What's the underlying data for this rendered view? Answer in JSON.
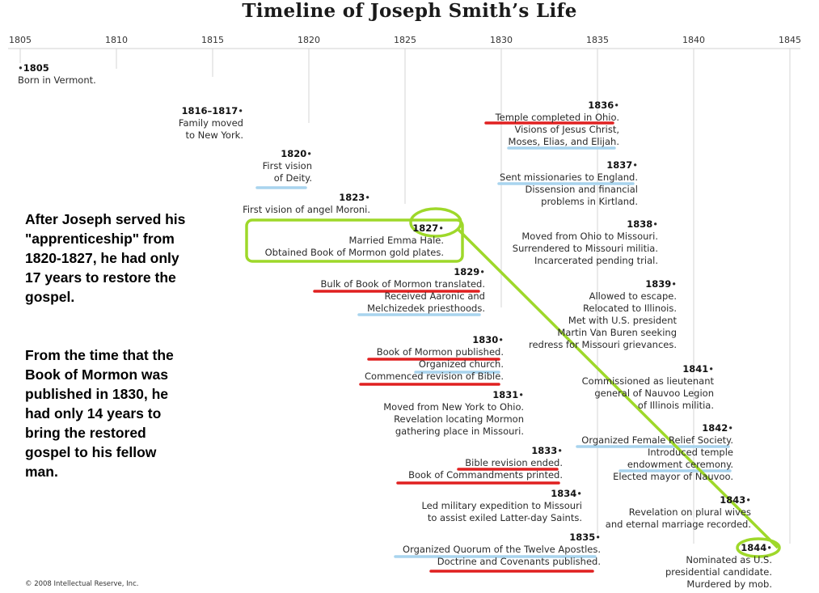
{
  "title": "Timeline of Joseph Smith’s Life",
  "axis_years": [
    "1805",
    "1810",
    "1815",
    "1820",
    "1825",
    "1830",
    "1835",
    "1840",
    "1845"
  ],
  "events": {
    "e1805": {
      "year": "1805",
      "lines": [
        "Born in Vermont."
      ]
    },
    "e1816": {
      "year": "1816–1817",
      "lines": [
        "Family moved",
        "to New York."
      ]
    },
    "e1820": {
      "year": "1820",
      "lines": [
        "First vision",
        "of Deity."
      ]
    },
    "e1823": {
      "year": "1823",
      "lines": [
        "First vision of angel Moroni."
      ]
    },
    "e1827": {
      "year": "1827",
      "lines": [
        "Married Emma Hale.",
        "Obtained Book of Mormon gold plates."
      ]
    },
    "e1829": {
      "year": "1829",
      "lines": [
        "Bulk of Book of Mormon translated.",
        "Received Aaronic and",
        "Melchizedek priesthoods."
      ]
    },
    "e1830": {
      "year": "1830",
      "lines": [
        "Book of Mormon published.",
        "Organized church.",
        "Commenced revision of Bible."
      ]
    },
    "e1831": {
      "year": "1831",
      "lines": [
        "Moved from New York to Ohio.",
        "Revelation locating Mormon",
        "gathering place in Missouri."
      ]
    },
    "e1833": {
      "year": "1833",
      "lines": [
        "Bible revision ended.",
        "Book of Commandments printed."
      ]
    },
    "e1834": {
      "year": "1834",
      "lines": [
        "Led military expedition to Missouri",
        "to assist exiled Latter-day Saints."
      ]
    },
    "e1835": {
      "year": "1835",
      "lines": [
        "Organized Quorum of the Twelve Apostles.",
        "Doctrine and Covenants published."
      ]
    },
    "e1836": {
      "year": "1836",
      "lines": [
        "Temple completed in Ohio.",
        "Visions of Jesus Christ,",
        "Moses, Elias, and Elijah."
      ]
    },
    "e1837": {
      "year": "1837",
      "lines": [
        "Sent missionaries to England.",
        "Dissension and financial",
        "problems in Kirtland."
      ]
    },
    "e1838": {
      "year": "1838",
      "lines": [
        "Moved from Ohio to Missouri.",
        "Surrendered to Missouri militia.",
        "Incarcerated pending trial."
      ]
    },
    "e1839": {
      "year": "1839",
      "lines": [
        "Allowed to escape.",
        "Relocated to Illinois.",
        "Met with U.S. president",
        "Martin Van Buren seeking",
        "redress for Missouri grievances."
      ]
    },
    "e1841": {
      "year": "1841",
      "lines": [
        "Commissioned as lieutenant",
        "general of Nauvoo Legion",
        "of Illinois militia."
      ]
    },
    "e1842": {
      "year": "1842",
      "lines": [
        "Organized Female Relief Society.",
        "Introduced temple",
        "endowment ceremony.",
        "Elected mayor of Nauvoo."
      ]
    },
    "e1843": {
      "year": "1843",
      "lines": [
        "Revelation on plural wives",
        "and eternal marriage recorded."
      ]
    },
    "e1844": {
      "year": "1844",
      "lines": [
        "Nominated as U.S.",
        "presidential candidate.",
        "Murdered by mob."
      ]
    }
  },
  "notes": {
    "n1": [
      "After Joseph served his",
      "\"apprenticeship\" from",
      "1820-1827, he had only",
      "17 years to restore the",
      "gospel."
    ],
    "n2": [
      "From the time that the",
      "Book of Mormon was",
      "published in 1830, he",
      "had only 14 years to",
      "bring the restored",
      "gospel to his fellow",
      "man."
    ]
  },
  "copyright": "© 2008 Intellectual Reserve, Inc.",
  "colors": {
    "red_underline": "#e02020",
    "blue_underline": "#a8d4ee",
    "highlight_green": "#9ed82a",
    "grid": "#d0d0d0"
  }
}
